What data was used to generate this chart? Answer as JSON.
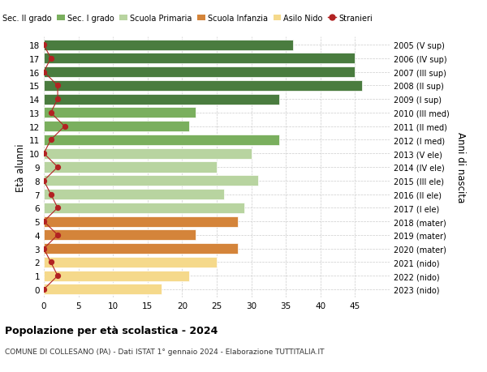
{
  "ages": [
    18,
    17,
    16,
    15,
    14,
    13,
    12,
    11,
    10,
    9,
    8,
    7,
    6,
    5,
    4,
    3,
    2,
    1,
    0
  ],
  "years": [
    "2005 (V sup)",
    "2006 (IV sup)",
    "2007 (III sup)",
    "2008 (II sup)",
    "2009 (I sup)",
    "2010 (III med)",
    "2011 (II med)",
    "2012 (I med)",
    "2013 (V ele)",
    "2014 (IV ele)",
    "2015 (III ele)",
    "2016 (II ele)",
    "2017 (I ele)",
    "2018 (mater)",
    "2019 (mater)",
    "2020 (mater)",
    "2021 (nido)",
    "2022 (nido)",
    "2023 (nido)"
  ],
  "bar_values": [
    36,
    45,
    45,
    46,
    34,
    22,
    21,
    34,
    30,
    25,
    31,
    26,
    29,
    28,
    22,
    28,
    25,
    21,
    17
  ],
  "stranieri": [
    0,
    1,
    0,
    2,
    2,
    1,
    3,
    1,
    0,
    2,
    0,
    1,
    2,
    0,
    2,
    0,
    1,
    2,
    0
  ],
  "bar_colors": [
    "#4a7c3f",
    "#4a7c3f",
    "#4a7c3f",
    "#4a7c3f",
    "#4a7c3f",
    "#7aaf5e",
    "#7aaf5e",
    "#7aaf5e",
    "#b8d4a0",
    "#b8d4a0",
    "#b8d4a0",
    "#b8d4a0",
    "#b8d4a0",
    "#d4843a",
    "#d4843a",
    "#d4843a",
    "#f5d98b",
    "#f5d98b",
    "#f5d98b"
  ],
  "color_sec2": "#4a7c3f",
  "color_sec1": "#7aaf5e",
  "color_prim": "#b8d4a0",
  "color_infanzia": "#d4843a",
  "color_nido": "#f5d98b",
  "color_stranieri": "#b22222",
  "title_main": "Popolazione per età scolastica - 2024",
  "title_sub": "COMUNE DI COLLESANO (PA) - Dati ISTAT 1° gennaio 2024 - Elaborazione TUTTITALIA.IT",
  "ylabel_left": "Età alunni",
  "ylabel_right": "Anni di nascita",
  "xlim": [
    0,
    50
  ],
  "xticks": [
    0,
    5,
    10,
    15,
    20,
    25,
    30,
    35,
    40,
    45
  ],
  "legend_labels": [
    "Sec. II grado",
    "Sec. I grado",
    "Scuola Primaria",
    "Scuola Infanzia",
    "Asilo Nido",
    "Stranieri"
  ],
  "background_color": "#ffffff",
  "grid_color": "#cccccc"
}
